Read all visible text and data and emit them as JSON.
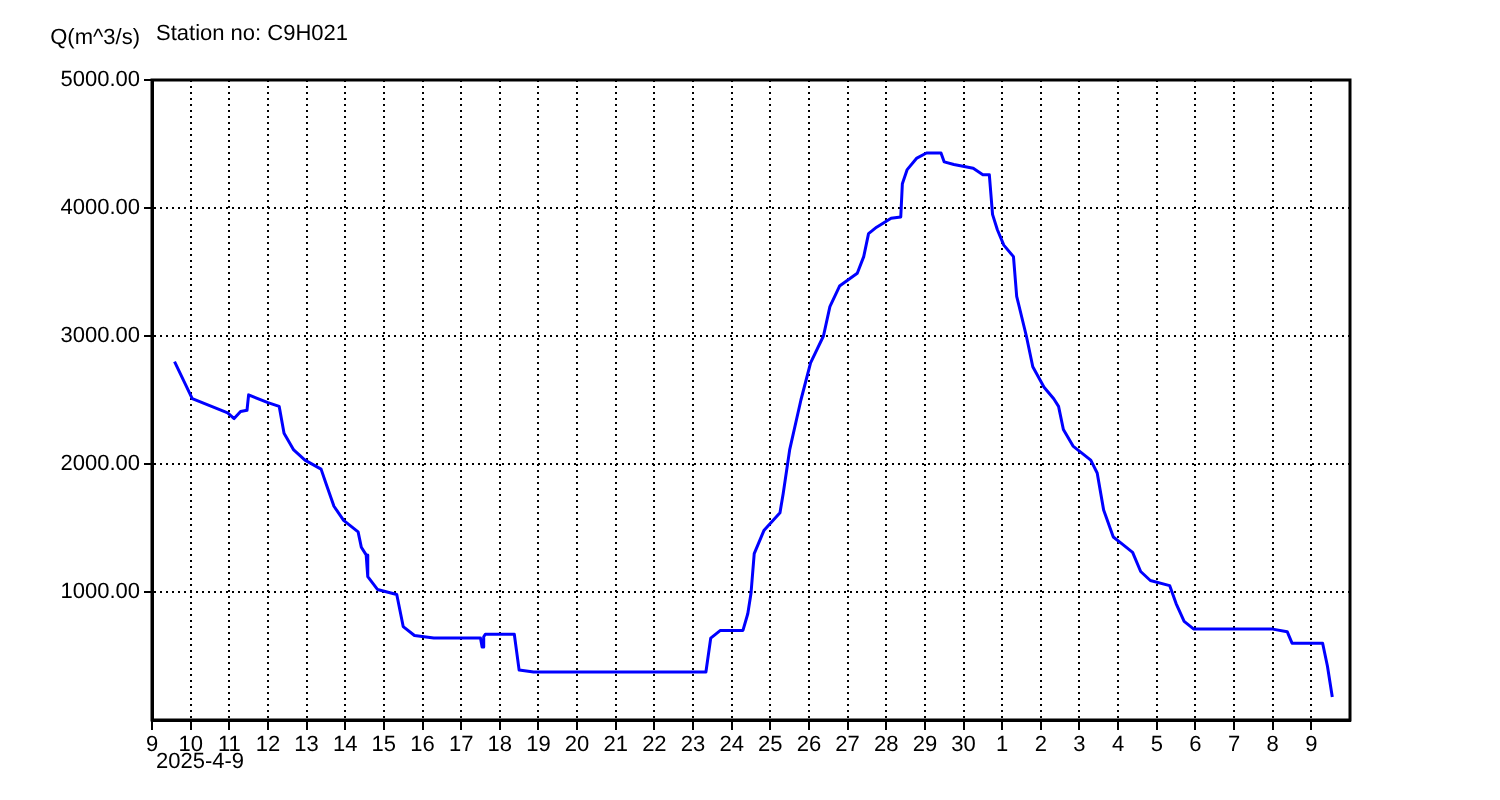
{
  "chart_data": {
    "type": "line",
    "title": "Station no: C9H021",
    "ylabel": "Q(m^3/s)",
    "annotations": [
      "2025-4-9"
    ],
    "x": [
      "2025-04-09T14:00",
      "2025-04-10T01:00",
      "2025-04-10T23:00",
      "2025-04-11T03:00",
      "2025-04-11T07:00",
      "2025-04-11T11:00",
      "2025-04-11T12:00",
      "2025-04-12T00:00",
      "2025-04-12T07:00",
      "2025-04-12T10:00",
      "2025-04-12T16:00",
      "2025-04-12T23:00",
      "2025-04-13T09:00",
      "2025-04-13T12:00",
      "2025-04-13T17:00",
      "2025-04-13T23:00",
      "2025-04-14T08:00",
      "2025-04-14T10:00",
      "2025-04-14T13:00",
      "2025-04-14T14:00",
      "2025-04-14T20:00",
      "2025-04-15T08:00",
      "2025-04-15T12:00",
      "2025-04-15T19:00",
      "2025-04-16T07:00",
      "2025-04-17T12:00",
      "2025-04-17T13:00",
      "2025-04-17T14:00",
      "2025-04-17T15:00",
      "2025-04-18T09:00",
      "2025-04-18T12:00",
      "2025-04-18T21:00",
      "2025-04-23T08:00",
      "2025-04-23T11:00",
      "2025-04-23T17:00",
      "2025-04-24T07:00",
      "2025-04-24T10:00",
      "2025-04-24T12:00",
      "2025-04-24T14:00",
      "2025-04-24T20:00",
      "2025-04-25T06:00",
      "2025-04-25T08:00",
      "2025-04-25T12:00",
      "2025-04-25T19:00",
      "2025-04-26T01:00",
      "2025-04-26T09:00",
      "2025-04-26T13:00",
      "2025-04-26T19:00",
      "2025-04-27T06:00",
      "2025-04-27T10:00",
      "2025-04-27T13:00",
      "2025-04-27T18:00",
      "2025-04-28T03:00",
      "2025-04-28T09:00",
      "2025-04-28T10:00",
      "2025-04-28T13:00",
      "2025-04-28T19:00",
      "2025-04-29T01:00",
      "2025-04-29T10:00",
      "2025-04-29T12:00",
      "2025-04-29T18:00",
      "2025-04-30T06:00",
      "2025-04-30T12:00",
      "2025-04-30T16:00",
      "2025-04-30T18:00",
      "2025-04-30T21:00",
      "2025-05-01T01:00",
      "2025-05-01T07:00",
      "2025-05-01T09:00",
      "2025-05-01T15:00",
      "2025-05-01T19:00",
      "2025-05-02T02:00",
      "2025-05-02T08:00",
      "2025-05-02T11:00",
      "2025-05-02T14:00",
      "2025-05-02T20:00",
      "2025-05-03T07:00",
      "2025-05-03T11:00",
      "2025-05-03T15:00",
      "2025-05-03T21:00",
      "2025-05-04T03:00",
      "2025-05-04T09:00",
      "2025-05-04T14:00",
      "2025-05-04T20:00",
      "2025-05-05T08:00",
      "2025-05-05T12:00",
      "2025-05-05T17:00",
      "2025-05-05T23:00",
      "2025-05-08T00:00",
      "2025-05-08T09:00",
      "2025-05-08T12:00",
      "2025-05-09T07:00",
      "2025-05-09T10:00",
      "2025-05-09T13:00"
    ],
    "series": [
      {
        "color": "#0000ff",
        "values": [
          2800,
          2510,
          2400,
          2355,
          2410,
          2420,
          2540,
          2480,
          2450,
          2240,
          2110,
          2030,
          1960,
          1850,
          1670,
          1560,
          1470,
          1350,
          1290,
          1120,
          1020,
          980,
          730,
          660,
          640,
          640,
          570,
          650,
          670,
          670,
          390,
          375,
          375,
          640,
          700,
          700,
          830,
          990,
          1300,
          1480,
          1620,
          1770,
          2110,
          2500,
          2790,
          3000,
          3230,
          3390,
          3490,
          3620,
          3800,
          3850,
          3920,
          3930,
          4190,
          4300,
          4390,
          4430,
          4430,
          4360,
          4340,
          4310,
          4260,
          4260,
          3950,
          3830,
          3710,
          3620,
          3310,
          3000,
          2760,
          2600,
          2510,
          2450,
          2270,
          2140,
          2030,
          1930,
          1640,
          1430,
          1370,
          1310,
          1160,
          1090,
          1050,
          910,
          770,
          710,
          710,
          690,
          600,
          600,
          420,
          180
        ]
      }
    ],
    "xlim": [
      "2025-04-09",
      "2025-05-10"
    ],
    "xticks": [
      {
        "value": "2025-04-09",
        "label": "9"
      },
      {
        "value": "2025-04-10",
        "label": "10"
      },
      {
        "value": "2025-04-11",
        "label": "11"
      },
      {
        "value": "2025-04-12",
        "label": "12"
      },
      {
        "value": "2025-04-13",
        "label": "13"
      },
      {
        "value": "2025-04-14",
        "label": "14"
      },
      {
        "value": "2025-04-15",
        "label": "15"
      },
      {
        "value": "2025-04-16",
        "label": "16"
      },
      {
        "value": "2025-04-17",
        "label": "17"
      },
      {
        "value": "2025-04-18",
        "label": "18"
      },
      {
        "value": "2025-04-19",
        "label": "19"
      },
      {
        "value": "2025-04-20",
        "label": "20"
      },
      {
        "value": "2025-04-21",
        "label": "21"
      },
      {
        "value": "2025-04-22",
        "label": "22"
      },
      {
        "value": "2025-04-23",
        "label": "23"
      },
      {
        "value": "2025-04-24",
        "label": "24"
      },
      {
        "value": "2025-04-25",
        "label": "25"
      },
      {
        "value": "2025-04-26",
        "label": "26"
      },
      {
        "value": "2025-04-27",
        "label": "27"
      },
      {
        "value": "2025-04-28",
        "label": "28"
      },
      {
        "value": "2025-04-29",
        "label": "29"
      },
      {
        "value": "2025-04-30",
        "label": "30"
      },
      {
        "value": "2025-05-01",
        "label": "1"
      },
      {
        "value": "2025-05-02",
        "label": "2"
      },
      {
        "value": "2025-05-03",
        "label": "3"
      },
      {
        "value": "2025-05-04",
        "label": "4"
      },
      {
        "value": "2025-05-05",
        "label": "5"
      },
      {
        "value": "2025-05-06",
        "label": "6"
      },
      {
        "value": "2025-05-07",
        "label": "7"
      },
      {
        "value": "2025-05-08",
        "label": "8"
      },
      {
        "value": "2025-05-09",
        "label": "9"
      }
    ],
    "ylim": [
      0,
      5000
    ],
    "yticks": [
      {
        "value": 1000,
        "label": "1000.00"
      },
      {
        "value": 2000,
        "label": "2000.00"
      },
      {
        "value": 3000,
        "label": "3000.00"
      },
      {
        "value": 4000,
        "label": "4000.00"
      },
      {
        "value": 5000,
        "label": "5000.00"
      }
    ],
    "grid": true,
    "legend": false,
    "marker": "none",
    "line_style": "solid"
  }
}
